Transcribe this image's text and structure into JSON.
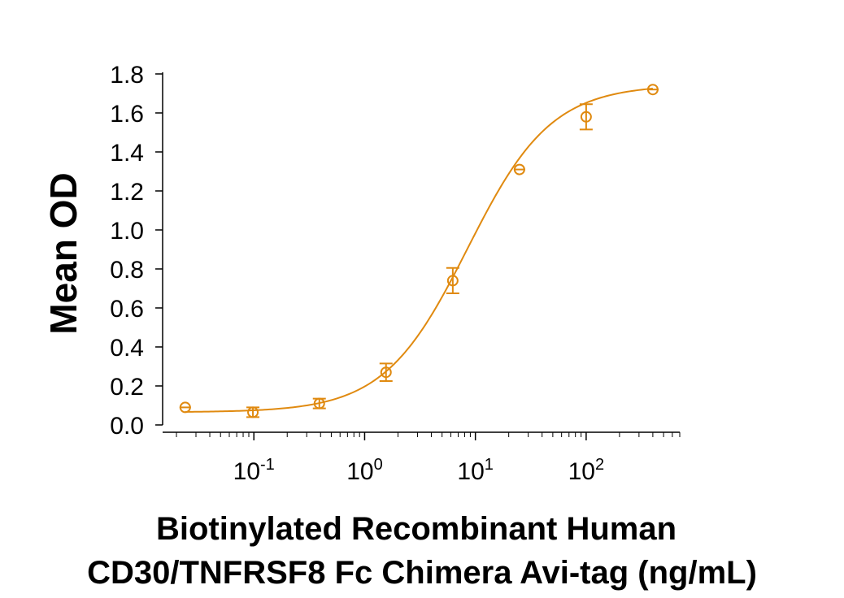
{
  "chart_data": {
    "type": "scatter",
    "xlabel_lines": [
      "Biotinylated Recombinant  Human",
      "CD30/TNFRSF8 Fc Chimera Avi-tag (ng/mL)"
    ],
    "ylabel": "Mean OD",
    "x_scale": "log",
    "xlim": [
      0.015,
      700
    ],
    "ylim": [
      0,
      1.8
    ],
    "y_ticks": [
      "0.0",
      "0.2",
      "0.4",
      "0.6",
      "0.8",
      "1.0",
      "1.2",
      "1.4",
      "1.6",
      "1.8"
    ],
    "x_ticks": [
      {
        "base": "10",
        "exp": "-1",
        "value": 0.1
      },
      {
        "base": "10",
        "exp": "0",
        "value": 1
      },
      {
        "base": "10",
        "exp": "1",
        "value": 10
      },
      {
        "base": "10",
        "exp": "2",
        "value": 100
      }
    ],
    "color": "#e08a10",
    "grid": false,
    "legend": "none",
    "series": [
      {
        "x": [
          0.024,
          0.098,
          0.39,
          1.56,
          6.25,
          25,
          100,
          400
        ],
        "y": [
          0.09,
          0.065,
          0.11,
          0.27,
          0.74,
          1.31,
          1.58,
          1.72
        ],
        "err": [
          0.0,
          0.025,
          0.025,
          0.045,
          0.065,
          0.0,
          0.065,
          0.0
        ]
      }
    ]
  }
}
